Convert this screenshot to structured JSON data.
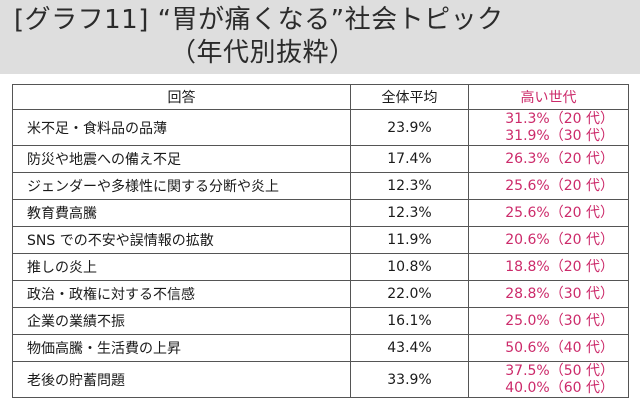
{
  "title": {
    "line1": "[グラフ11] “胃が痛くなる”社会トピック",
    "line2": "（年代別抜粋）"
  },
  "colors": {
    "header_bg": "#dedede",
    "accent": "#cc2a6a"
  },
  "chart_data": {
    "type": "table",
    "columns": [
      "回答",
      "全体平均",
      "高い世代"
    ],
    "rows": [
      {
        "item": "米不足・食料品の品薄",
        "avg": "23.9%",
        "high": [
          "31.3%（20 代）",
          "31.9%（30 代）"
        ]
      },
      {
        "item": "防災や地震への備え不足",
        "avg": "17.4%",
        "high": [
          "26.3%（20 代）"
        ]
      },
      {
        "item": "ジェンダーや多様性に関する分断や炎上",
        "avg": "12.3%",
        "high": [
          "25.6%（20 代）"
        ]
      },
      {
        "item": "教育費高騰",
        "avg": "12.3%",
        "high": [
          "25.6%（20 代）"
        ]
      },
      {
        "item": "SNS での不安や誤情報の拡散",
        "avg": "11.9%",
        "high": [
          "20.6%（20 代）"
        ]
      },
      {
        "item": "推しの炎上",
        "avg": "10.8%",
        "high": [
          "18.8%（20 代）"
        ]
      },
      {
        "item": "政治・政権に対する不信感",
        "avg": "22.0%",
        "high": [
          "28.8%（30 代）"
        ]
      },
      {
        "item": "企業の業績不振",
        "avg": "16.1%",
        "high": [
          "25.0%（30 代）"
        ]
      },
      {
        "item": "物価高騰・生活費の上昇",
        "avg": "43.4%",
        "high": [
          "50.6%（40 代）"
        ]
      },
      {
        "item": "老後の貯蓄問題",
        "avg": "33.9%",
        "high": [
          "37.5%（50 代）",
          "40.0%（60 代）"
        ]
      }
    ]
  }
}
